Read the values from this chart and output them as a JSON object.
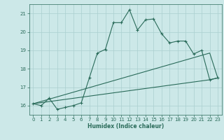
{
  "xlabel": "Humidex (Indice chaleur)",
  "bg_color": "#cce8e8",
  "grid_color": "#aacfcf",
  "line_color": "#2a6b5a",
  "xlim": [
    -0.5,
    23.5
  ],
  "ylim": [
    15.5,
    21.5
  ],
  "yticks": [
    16,
    17,
    18,
    19,
    20,
    21
  ],
  "xticks": [
    0,
    1,
    2,
    3,
    4,
    5,
    6,
    7,
    8,
    9,
    10,
    11,
    12,
    13,
    14,
    15,
    16,
    17,
    18,
    19,
    20,
    21,
    22,
    23
  ],
  "series1_x": [
    0,
    1,
    2,
    3,
    4,
    5,
    6,
    7,
    8,
    9,
    10,
    11,
    12,
    13,
    14,
    15,
    16,
    17,
    18,
    19,
    20,
    21,
    22,
    23
  ],
  "series1_y": [
    16.1,
    16.0,
    16.4,
    15.8,
    15.9,
    16.0,
    16.15,
    17.5,
    18.85,
    19.05,
    20.5,
    20.5,
    21.2,
    20.1,
    20.65,
    20.7,
    19.9,
    19.4,
    19.5,
    19.5,
    18.8,
    19.0,
    17.4,
    17.5
  ],
  "series2_x": [
    0,
    22,
    23
  ],
  "series2_y": [
    16.1,
    18.85,
    17.5
  ],
  "series3_x": [
    0,
    22,
    23
  ],
  "series3_y": [
    16.1,
    17.4,
    17.5
  ]
}
